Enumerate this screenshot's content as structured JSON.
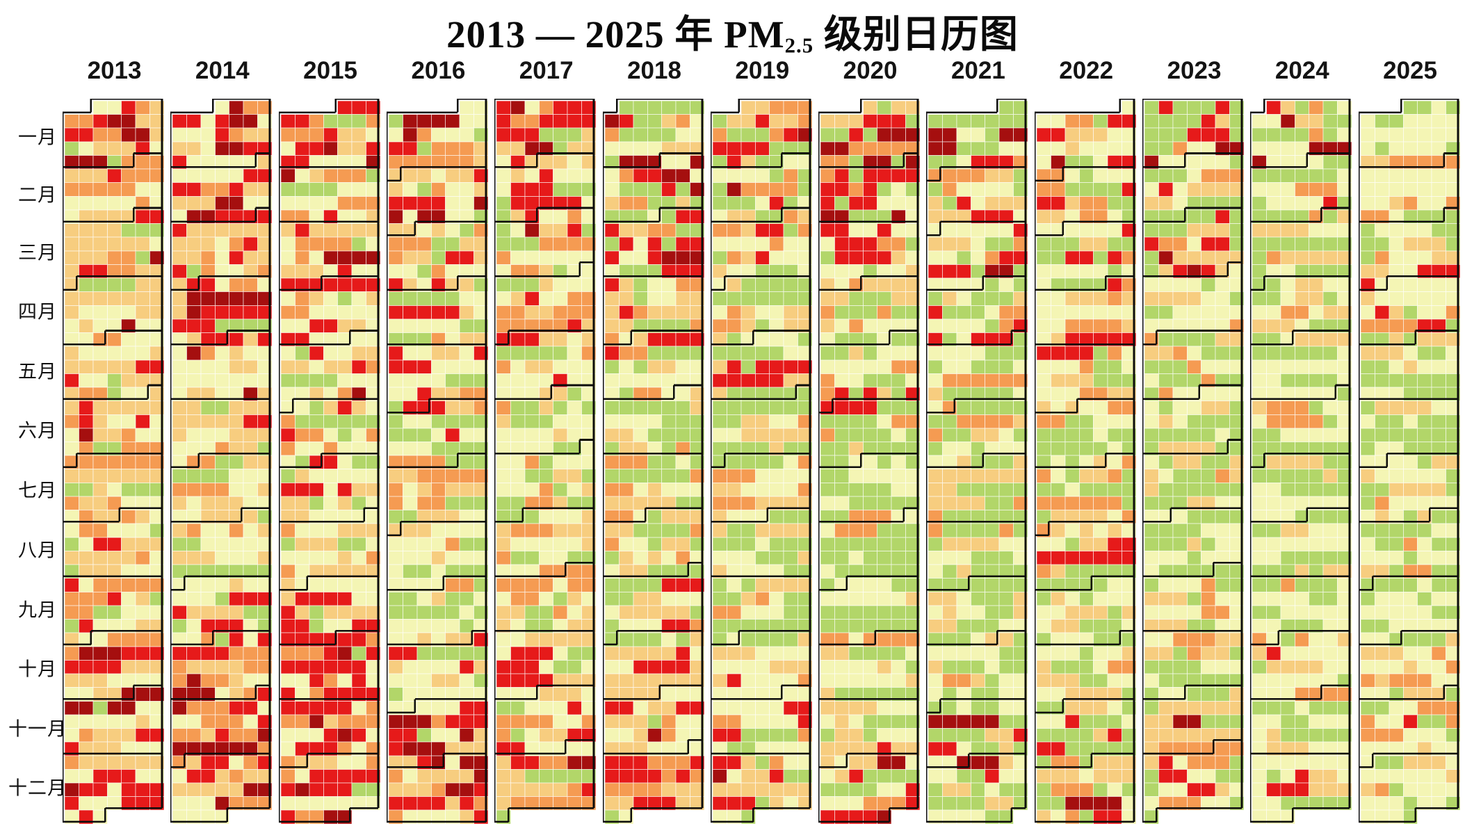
{
  "title": {
    "prefix": "2013 — 2025 年 PM",
    "sub": "2.5",
    "suffix": " 级别日历图"
  },
  "chart_data": {
    "type": "heatmap",
    "subtype": "calendar-heatmap",
    "title": "2013 — 2025 年 PM2.5 级别日历图",
    "years": [
      2013,
      2014,
      2015,
      2016,
      2017,
      2018,
      2019,
      2020,
      2021,
      2022,
      2023,
      2024,
      2025
    ],
    "month_labels": [
      "一月",
      "二月",
      "三月",
      "四月",
      "五月",
      "六月",
      "七月",
      "八月",
      "九月",
      "十月",
      "十一月",
      "十二月"
    ],
    "week_start": "Sunday",
    "weeks_per_column": 53,
    "grid_lines": "thin white between day cells, thick black outlines around each month block",
    "legend_position": "none-visible (cut off at bottom edge)",
    "levels": [
      {
        "id": "level-1",
        "color": "#b2d669"
      },
      {
        "id": "level-2",
        "color": "#f4f5b4"
      },
      {
        "id": "level-3",
        "color": "#f7cd7f"
      },
      {
        "id": "level-4",
        "color": "#f59b52"
      },
      {
        "id": "level-5",
        "color": "#e61a1a"
      },
      {
        "id": "level-6",
        "color": "#a50f0f"
      }
    ],
    "monthly_level_weights_note": "Per year, 12 strings of 6 digits = relative frequency of levels 1-6 in that month, as read from the chart; daily cells are reconstructed deterministically from these distributions.",
    "monthly_level_weights": {
      "2013": [
        "124363",
        "154242",
        "144243",
        "164221",
        "254211",
        "163321",
        "264210",
        "264210",
        "263211",
        "153232",
        "153232",
        "143242"
      ],
      "2014": [
        "134353",
        "134363",
        "144342",
        "154231",
        "163221",
        "263220",
        "363210",
        "363210",
        "263220",
        "143342",
        "143342",
        "143332"
      ],
      "2015": [
        "144343",
        "154332",
        "154231",
        "163221",
        "263221",
        "363220",
        "363210",
        "463210",
        "363220",
        "153232",
        "143343",
        "133354"
      ],
      "2016": [
        "144343",
        "154232",
        "254221",
        "263221",
        "363220",
        "463210",
        "463210",
        "463200",
        "463210",
        "263221",
        "153242",
        "143345"
      ],
      "2017": [
        "122247",
        "243232",
        "253221",
        "353220",
        "453220",
        "463210",
        "463200",
        "563200",
        "463210",
        "463220",
        "363221",
        "353221"
      ],
      "2018": [
        "443221",
        "443221",
        "443231",
        "463220",
        "553210",
        "563200",
        "563200",
        "563200",
        "563210",
        "463220",
        "453231",
        "453221"
      ],
      "2019": [
        "543221",
        "543221",
        "543231",
        "553220",
        "563210",
        "653200",
        "663200",
        "663200",
        "663200",
        "563210",
        "553221",
        "553221"
      ],
      "2020": [
        "432232",
        "532232",
        "553220",
        "563210",
        "563210",
        "663200",
        "663200",
        "763200",
        "663200",
        "563210",
        "553221",
        "543221"
      ],
      "2021": [
        "542232",
        "553221",
        "543232",
        "563220",
        "663210",
        "763200",
        "763200",
        "763100",
        "763200",
        "663210",
        "653221",
        "653210"
      ],
      "2022": [
        "653221",
        "653220",
        "663220",
        "663210",
        "763200",
        "763200",
        "763200",
        "763210",
        "763100",
        "663210",
        "653220",
        "653221"
      ],
      "2023": [
        "643231",
        "653221",
        "643232",
        "663221",
        "763210",
        "763200",
        "763200",
        "763100",
        "763200",
        "663210",
        "653221",
        "653221"
      ],
      "2024": [
        "653221",
        "663220",
        "663210",
        "763210",
        "763200",
        "863100",
        "863100",
        "863100",
        "863200",
        "763210",
        "663211",
        "663220"
      ],
      "2025": [
        "763210",
        "763210",
        "663221",
        "763210",
        "863200",
        "863100",
        "863100",
        "863100",
        "863100",
        "863200",
        "763210",
        "763200"
      ]
    }
  }
}
